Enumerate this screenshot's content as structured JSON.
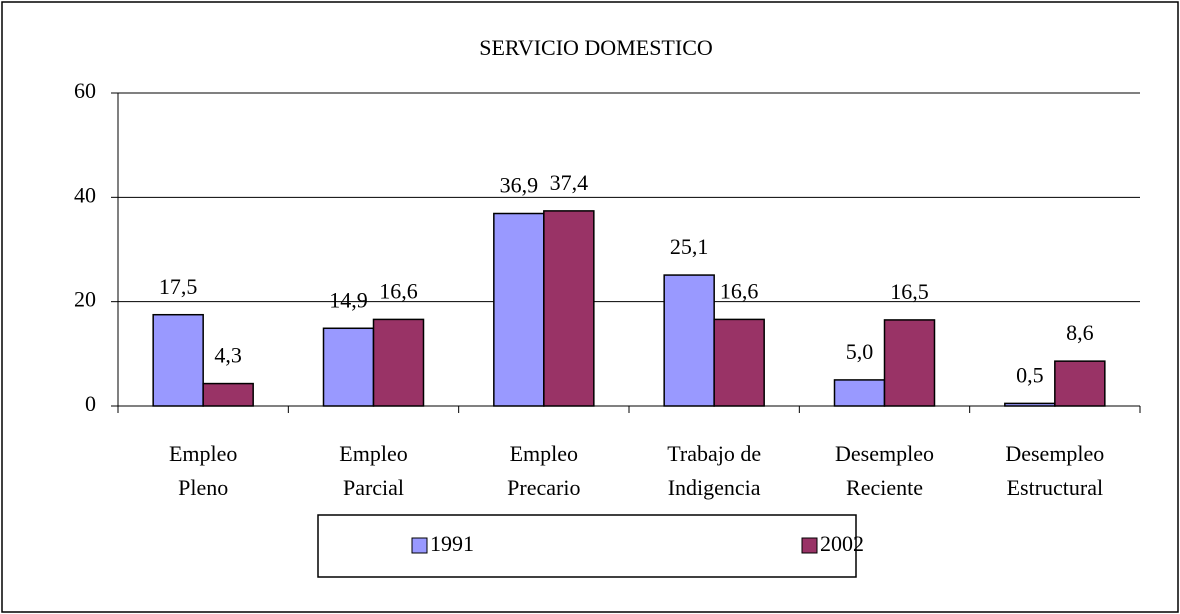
{
  "chart_data": {
    "type": "bar",
    "title": "SERVICIO DOMESTICO",
    "categories": [
      "Empleo\nPleno",
      "Empleo\nParcial",
      "Empleo\nPrecario",
      "Trabajo de\nIndigencia",
      "Desempleo\nReciente",
      "Desempleo\nEstructural"
    ],
    "series": [
      {
        "name": "1991",
        "color": "#9999ff",
        "values": [
          17.5,
          14.9,
          36.9,
          25.1,
          5.0,
          0.5
        ],
        "value_labels": [
          "17,5",
          "14,9",
          "36,9",
          "25,1",
          "5,0",
          "0,5"
        ]
      },
      {
        "name": "2002",
        "color": "#993366",
        "values": [
          4.3,
          16.6,
          37.4,
          16.6,
          16.5,
          8.6
        ],
        "value_labels": [
          "4,3",
          "16,6",
          "37,4",
          "16,6",
          "16,5",
          "8,6"
        ]
      }
    ],
    "ylim": [
      0,
      60
    ],
    "yticks": [
      0,
      20,
      40,
      60
    ],
    "grid": true,
    "legend": "bottom"
  }
}
